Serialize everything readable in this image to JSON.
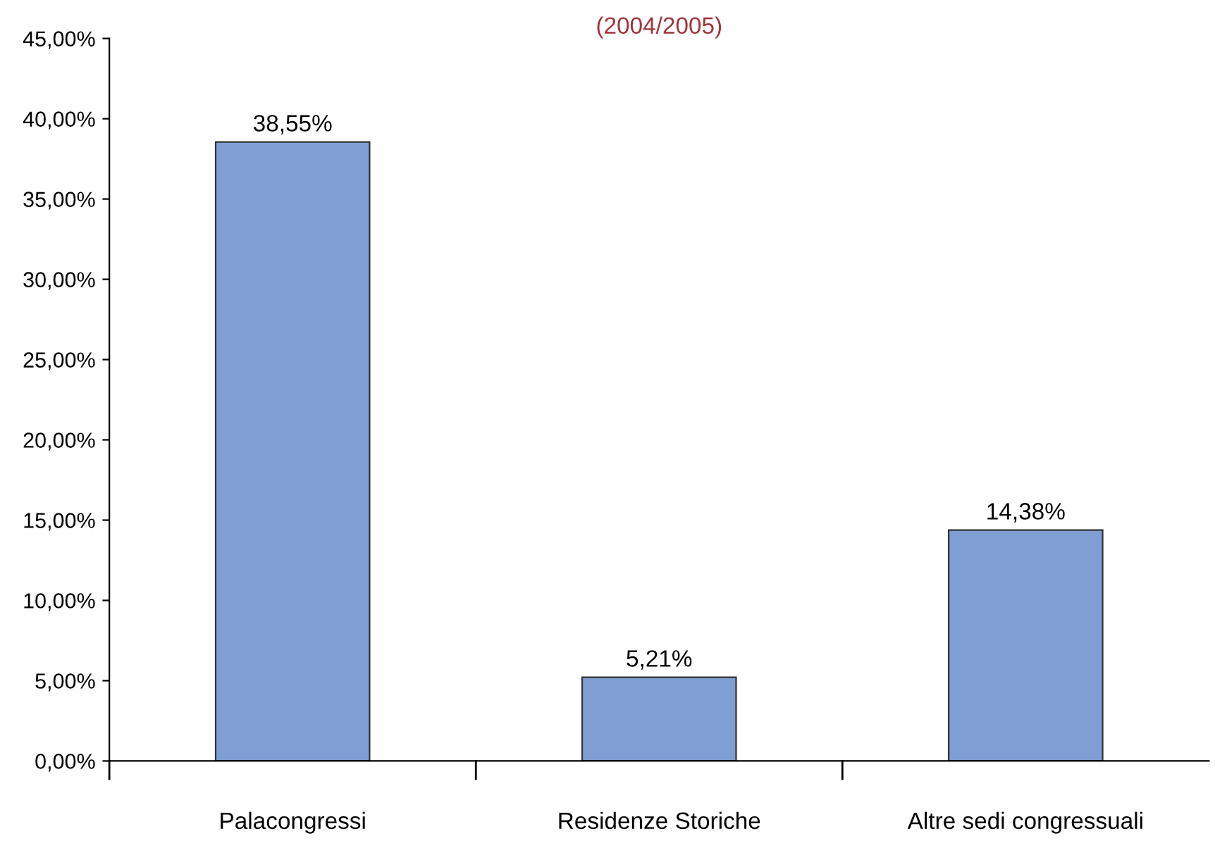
{
  "chart_data": {
    "type": "bar",
    "title": "(2004/2005)",
    "categories": [
      "Palacongressi",
      "Residenze Storiche",
      "Altre sedi congressuali"
    ],
    "values": [
      38.55,
      5.21,
      14.38
    ],
    "color": "#7f9fd4",
    "value_labels": [
      "38,55%",
      "5,21%",
      "14,38%"
    ],
    "ylim": [
      0,
      45
    ],
    "yticks": [
      {
        "value": 0,
        "label": "0,00%"
      },
      {
        "value": 5,
        "label": "5,00%"
      },
      {
        "value": 10,
        "label": "10,00%"
      },
      {
        "value": 15,
        "label": "15,00%"
      },
      {
        "value": 20,
        "label": "20,00%"
      },
      {
        "value": 25,
        "label": "25,00%"
      },
      {
        "value": 30,
        "label": "30,00%"
      },
      {
        "value": 35,
        "label": "35,00%"
      },
      {
        "value": 40,
        "label": "40,00%"
      },
      {
        "value": 45,
        "label": "45,00%"
      }
    ],
    "grid": false,
    "legend": false
  }
}
